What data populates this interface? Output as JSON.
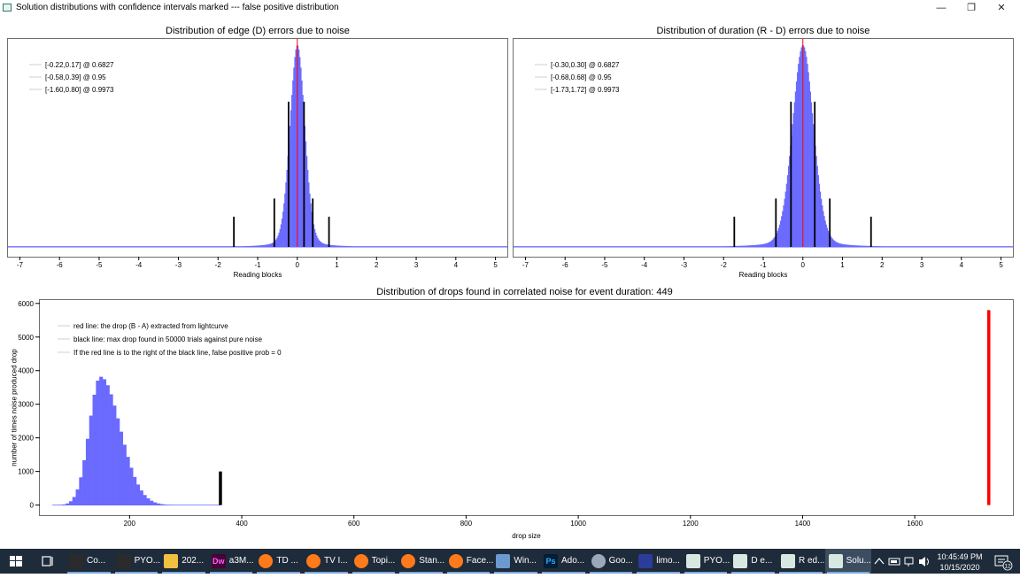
{
  "window": {
    "title": "Solution distributions with confidence intervals marked --- false positive distribution",
    "minimize_glyph": "—",
    "maximize_glyph": "❐",
    "close_glyph": "✕"
  },
  "colors": {
    "histogram": "#6a6aff",
    "red_line": "#ff0000",
    "black_line": "#000000",
    "taskbar": "#1e2b3a"
  },
  "chart_data": [
    {
      "type": "bar",
      "title": "Distribution of edge (D) errors due to noise",
      "xlabel": "Reading blocks",
      "ylabel": "",
      "xlim": [
        -7.3,
        5.3
      ],
      "xticks": [
        -7,
        -6,
        -5,
        -4,
        -3,
        -2,
        -1,
        0,
        1,
        2,
        3,
        4,
        5
      ],
      "histogram": {
        "center": 0.0,
        "sigma": 0.19,
        "peak": 1.0
      },
      "red_line_x": 0.0,
      "confidence_lines": [
        {
          "x": -0.22,
          "height": 0.72
        },
        {
          "x": 0.17,
          "height": 0.72
        },
        {
          "x": -0.58,
          "height": 0.24
        },
        {
          "x": 0.39,
          "height": 0.24
        },
        {
          "x": -1.6,
          "height": 0.15
        },
        {
          "x": 0.8,
          "height": 0.15
        }
      ],
      "legend": [
        "[-0.22,0.17] @ 0.6827",
        "[-0.58,0.39] @ 0.95",
        "[-1.60,0.80] @ 0.9973"
      ],
      "legend_position": "top-left",
      "grid": false
    },
    {
      "type": "bar",
      "title": "Distribution of duration (R - D) errors due to noise",
      "xlabel": "Reading blocks",
      "ylabel": "",
      "xlim": [
        -7.3,
        5.3
      ],
      "xticks": [
        -7,
        -6,
        -5,
        -4,
        -3,
        -2,
        -1,
        0,
        1,
        2,
        3,
        4,
        5
      ],
      "histogram": {
        "center": 0.0,
        "sigma": 0.27,
        "peak": 1.0
      },
      "red_line_x": 0.0,
      "confidence_lines": [
        {
          "x": -0.3,
          "height": 0.72
        },
        {
          "x": 0.3,
          "height": 0.72
        },
        {
          "x": -0.68,
          "height": 0.24
        },
        {
          "x": 0.68,
          "height": 0.24
        },
        {
          "x": -1.73,
          "height": 0.15
        },
        {
          "x": 1.72,
          "height": 0.15
        }
      ],
      "legend": [
        "[-0.30,0.30] @ 0.6827",
        "[-0.68,0.68] @ 0.95",
        "[-1.73,1.72] @ 0.9973"
      ],
      "legend_position": "top-left",
      "grid": false
    },
    {
      "type": "bar",
      "title": "Distribution of drops found in correlated noise for event duration: 449",
      "xlabel": "drop size",
      "ylabel": "number of times noise produced drop",
      "xlim": [
        40,
        1775
      ],
      "ylim": [
        -300,
        6100
      ],
      "xticks": [
        200,
        400,
        600,
        800,
        1000,
        1200,
        1400,
        1600
      ],
      "yticks": [
        0,
        1000,
        2000,
        3000,
        4000,
        5000,
        6000
      ],
      "histogram": {
        "mode": 148,
        "sigma_left": 20,
        "sigma_right": 35,
        "peak": 3820,
        "x_start": 62,
        "x_end": 300
      },
      "black_line": {
        "x": 362,
        "y": 1000
      },
      "red_line": {
        "x": 1732,
        "y": 5800
      },
      "legend": [
        "red line: the drop (B - A) extracted from lightcurve",
        "black line: max drop found in 50000 trials against pure noise",
        "If the red line is to the right of the black line, false positive prob = 0"
      ],
      "legend_position": "top-left",
      "grid": false
    }
  ],
  "taskbar": {
    "items": [
      {
        "label": "Co...",
        "icon": "terminal-icon",
        "color": "#2b2b2b"
      },
      {
        "label": "PYO...",
        "icon": "terminal-icon",
        "color": "#2b2b2b"
      },
      {
        "label": "202...",
        "icon": "folder-icon",
        "color": "#f0c040"
      },
      {
        "label": "a3M...",
        "icon": "dreamweaver-icon",
        "color": "#470137",
        "glyph": "Dw"
      },
      {
        "label": "TD ...",
        "icon": "firefox-icon",
        "color": "#ff7a1a"
      },
      {
        "label": "TV I...",
        "icon": "firefox-icon",
        "color": "#ff7a1a"
      },
      {
        "label": "Topi...",
        "icon": "firefox-icon",
        "color": "#ff7a1a"
      },
      {
        "label": "Stan...",
        "icon": "firefox-icon",
        "color": "#ff7a1a"
      },
      {
        "label": "Face...",
        "icon": "firefox-icon",
        "color": "#ff7a1a"
      },
      {
        "label": "Win...",
        "icon": "image-viewer-icon",
        "color": "#6a9ad0"
      },
      {
        "label": "Ado...",
        "icon": "photoshop-icon",
        "color": "#001e36",
        "glyph": "Ps"
      },
      {
        "label": "Goo...",
        "icon": "google-earth-icon",
        "color": "#9aa8b8"
      },
      {
        "label": "limo...",
        "icon": "star-app-icon",
        "color": "#2c3c9a"
      },
      {
        "label": "PYO...",
        "icon": "python-window-icon",
        "color": "#d8e8e0"
      },
      {
        "label": "D e...",
        "icon": "python-window-icon",
        "color": "#d8e8e0"
      },
      {
        "label": "R ed...",
        "icon": "python-window-icon",
        "color": "#d8e8e0"
      },
      {
        "label": "Solu...",
        "icon": "python-window-icon",
        "color": "#d8e8e0",
        "active": true
      }
    ],
    "tray_icons": [
      "chevron-up-icon",
      "battery-icon",
      "network-icon",
      "volume-icon"
    ],
    "time": "10:45:49 PM",
    "date": "10/15/2020",
    "notification_count": "12"
  }
}
